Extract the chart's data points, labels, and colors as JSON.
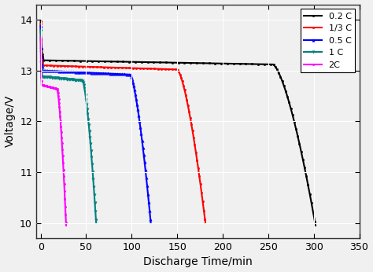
{
  "title": "",
  "xlabel": "Discharge Time/min",
  "ylabel": "Voltage/V",
  "xlim": [
    -5,
    350
  ],
  "ylim": [
    9.7,
    14.3
  ],
  "xticks": [
    0,
    50,
    100,
    150,
    200,
    250,
    300,
    350
  ],
  "yticks": [
    10,
    11,
    12,
    13,
    14
  ],
  "background_color": "#f0f0f0",
  "grid_color": "#ffffff",
  "curves": [
    {
      "label": "0.2 C",
      "color": "#000000",
      "marker": "o",
      "markersize": 1.8,
      "end_time": 302,
      "plateau_voltage": 13.2,
      "start_voltage": 13.97,
      "knee_start": 255,
      "end_voltage": 9.95,
      "initial_drop_time": 3.0
    },
    {
      "label": "1/3 C",
      "color": "#ff0000",
      "marker": "o",
      "markersize": 1.8,
      "end_time": 181,
      "plateau_voltage": 13.1,
      "start_voltage": 13.92,
      "knee_start": 150,
      "end_voltage": 10.0,
      "initial_drop_time": 2.5
    },
    {
      "label": "0.5 C",
      "color": "#0000ff",
      "marker": "^",
      "markersize": 2.5,
      "end_time": 121,
      "plateau_voltage": 13.0,
      "start_voltage": 13.88,
      "knee_start": 98,
      "end_voltage": 10.0,
      "initial_drop_time": 2.0
    },
    {
      "label": "1 C",
      "color": "#008080",
      "marker": "v",
      "markersize": 2.5,
      "end_time": 61,
      "plateau_voltage": 12.88,
      "start_voltage": 13.78,
      "knee_start": 46,
      "end_voltage": 10.0,
      "initial_drop_time": 1.5
    },
    {
      "label": "2C",
      "color": "#ff00ff",
      "marker": "o",
      "markersize": 1.8,
      "end_time": 28,
      "plateau_voltage": 12.72,
      "start_voltage": 13.65,
      "knee_start": 18,
      "end_voltage": 9.95,
      "initial_drop_time": 1.0
    }
  ],
  "legend_loc": "upper right",
  "figsize": [
    4.74,
    3.46
  ],
  "dpi": 100
}
